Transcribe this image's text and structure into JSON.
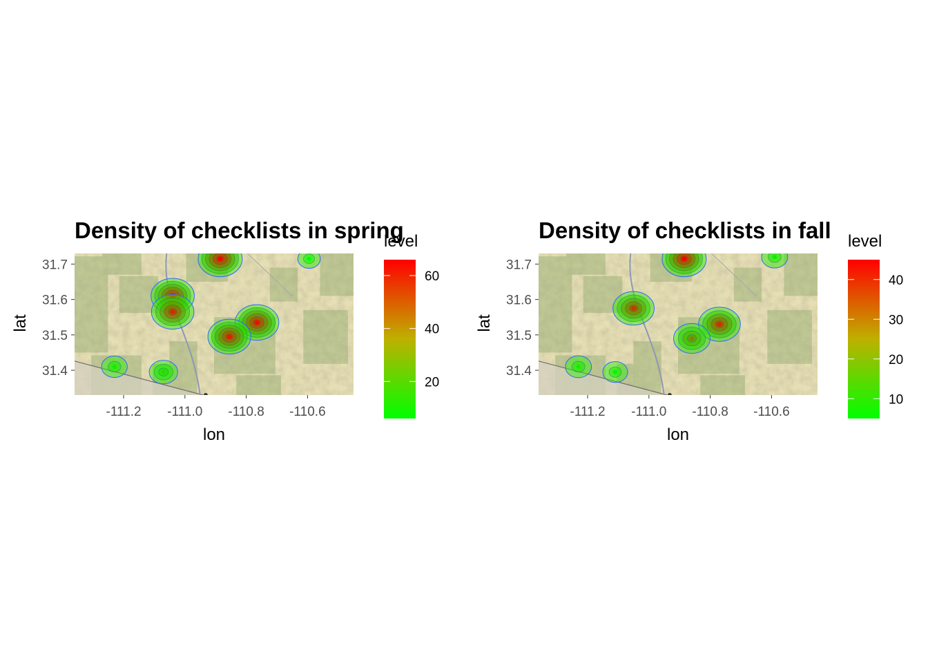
{
  "chart_data": [
    {
      "type": "heatmap",
      "subtype": "2d density contour over terrain basemap",
      "title": "Density of checklists in spring",
      "xlabel": "lon",
      "ylabel": "lat",
      "xlim": [
        -111.36,
        -110.45
      ],
      "ylim": [
        31.33,
        31.73
      ],
      "x_ticks": [
        -111.2,
        -111.0,
        -110.8,
        -110.6
      ],
      "x_tick_labels": [
        "-111.2",
        "-111.0",
        "-110.8",
        "-110.6"
      ],
      "y_ticks": [
        31.4,
        31.5,
        31.6,
        31.7
      ],
      "y_tick_labels": [
        "31.4",
        "31.5",
        "31.6",
        "31.7"
      ],
      "legend": {
        "title": "level",
        "range": [
          6,
          66
        ],
        "ticks": [
          20,
          40,
          60
        ],
        "tick_labels": [
          "20",
          "40",
          "60"
        ],
        "low_color": "#00ff00",
        "high_color": "#ff0000",
        "placement": "right"
      },
      "contour_color": "#3366ff",
      "hotspots": [
        {
          "lon": -110.885,
          "lat": 31.715,
          "level": 66
        },
        {
          "lon": -111.04,
          "lat": 31.61,
          "level": 62
        },
        {
          "lon": -111.04,
          "lat": 31.565,
          "level": 58
        },
        {
          "lon": -110.765,
          "lat": 31.535,
          "level": 64
        },
        {
          "lon": -110.855,
          "lat": 31.495,
          "level": 60
        },
        {
          "lon": -111.23,
          "lat": 31.41,
          "level": 10
        },
        {
          "lon": -111.07,
          "lat": 31.395,
          "level": 14
        },
        {
          "lon": -110.595,
          "lat": 31.715,
          "level": 7
        }
      ]
    },
    {
      "type": "heatmap",
      "subtype": "2d density contour over terrain basemap",
      "title": "Density of checklists in fall",
      "xlabel": "lon",
      "ylabel": "lat",
      "xlim": [
        -111.36,
        -110.45
      ],
      "ylim": [
        31.33,
        31.73
      ],
      "x_ticks": [
        -111.2,
        -111.0,
        -110.8,
        -110.6
      ],
      "x_tick_labels": [
        "-111.2",
        "-111.0",
        "-110.8",
        "-110.6"
      ],
      "y_ticks": [
        31.4,
        31.5,
        31.6,
        31.7
      ],
      "y_tick_labels": [
        "31.4",
        "31.5",
        "31.6",
        "31.7"
      ],
      "legend": {
        "title": "level",
        "range": [
          5,
          45
        ],
        "ticks": [
          10,
          20,
          30,
          40
        ],
        "tick_labels": [
          "10",
          "20",
          "30",
          "40"
        ],
        "low_color": "#00ff00",
        "high_color": "#ff0000",
        "placement": "right"
      },
      "contour_color": "#3366ff",
      "hotspots": [
        {
          "lon": -110.885,
          "lat": 31.715,
          "level": 45
        },
        {
          "lon": -111.05,
          "lat": 31.575,
          "level": 36
        },
        {
          "lon": -110.77,
          "lat": 31.53,
          "level": 38
        },
        {
          "lon": -110.86,
          "lat": 31.49,
          "level": 24
        },
        {
          "lon": -111.23,
          "lat": 31.41,
          "level": 8
        },
        {
          "lon": -111.11,
          "lat": 31.395,
          "level": 7
        },
        {
          "lon": -110.59,
          "lat": 31.72,
          "level": 8
        }
      ]
    }
  ]
}
